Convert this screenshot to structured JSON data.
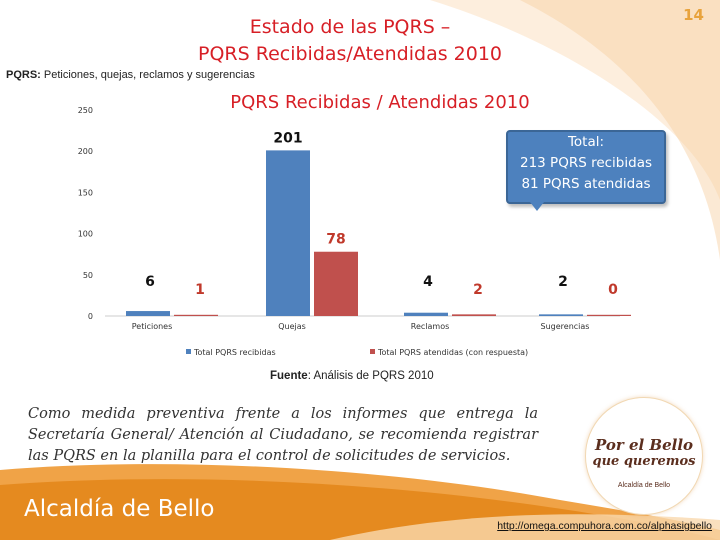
{
  "page_number": "14",
  "title_line1": "Estado de las PQRS –",
  "title_line2": "PQRS Recibidas/Atendidas 2010",
  "subtitle_label": "PQRS:",
  "subtitle_text": "Peticiones, quejas, reclamos y sugerencias",
  "callout": {
    "line1": "Total:",
    "line2": "213 PQRS recibidas",
    "line3": "81 PQRS atendidas"
  },
  "source_label": "Fuente",
  "source_text": ": Análisis de PQRS 2010",
  "note": "Como medida preventiva frente a los informes que entrega la Secretaría General/ Atención al Ciudadano, se recomienda registrar las PQRS en la planilla para el control de solicitudes de servicios.",
  "logo": {
    "line1": "Por el Bello",
    "line2": "que queremos",
    "caption": "Alcaldía de Bello"
  },
  "org_name": "Alcaldía de Bello",
  "url": "http://omega.compuhora.com.co/alphasigbello",
  "colors": {
    "title": "#d71f26",
    "series1": "#4f81bd",
    "series2": "#c0504d",
    "accent": "#e8a33c"
  },
  "chart_data": {
    "type": "bar",
    "title": "PQRS Recibidas  / Atendidas 2010",
    "categories": [
      "Peticiones",
      "Quejas",
      "Reclamos",
      "Sugerencias"
    ],
    "series": [
      {
        "name": "Total PQRS recibidas",
        "values": [
          6,
          201,
          4,
          2
        ]
      },
      {
        "name": "Total PQRS atendidas (con respuesta)",
        "values": [
          1,
          78,
          2,
          0
        ]
      }
    ],
    "data_labels": [
      [
        "6",
        "201",
        "4",
        "2"
      ],
      [
        "1",
        "78",
        "2",
        "0"
      ]
    ],
    "ylim": [
      0,
      250
    ],
    "yticks": [
      "0",
      "50",
      "100",
      "150",
      "200",
      "250"
    ],
    "legend_position": "bottom",
    "grid": false
  }
}
